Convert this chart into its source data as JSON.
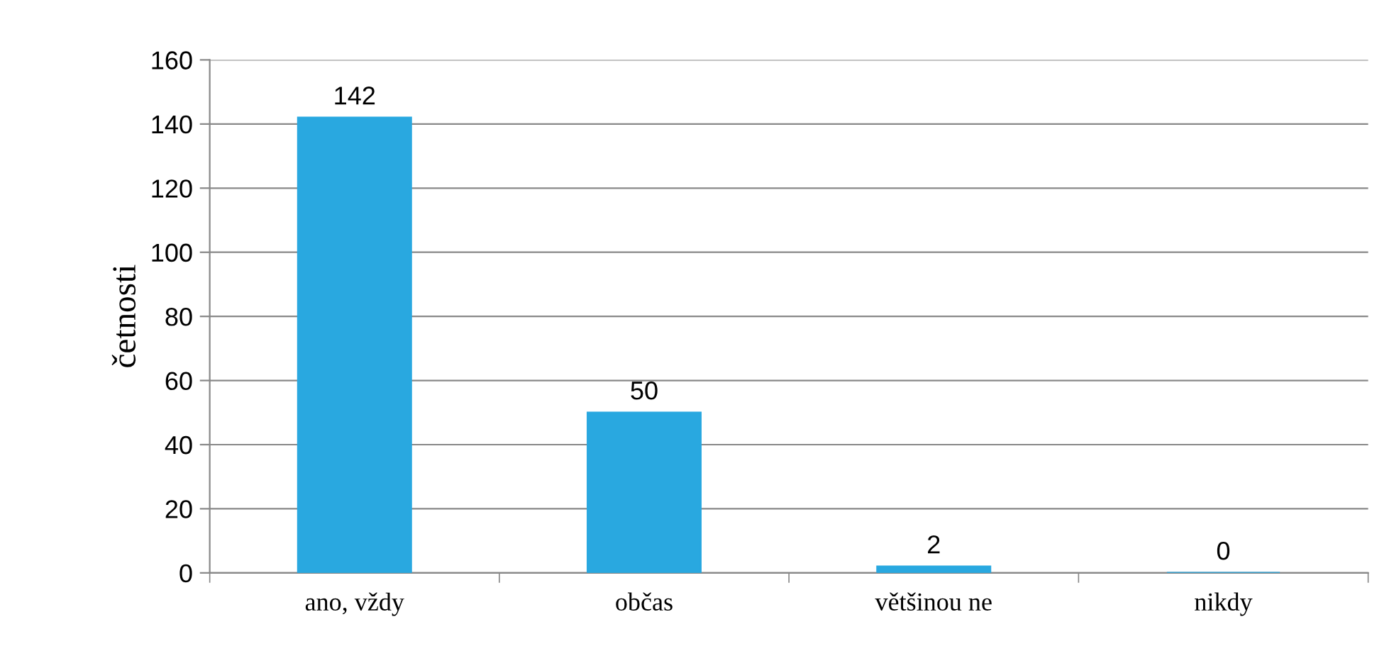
{
  "chart_data": {
    "type": "bar",
    "ylabel": "četnosti",
    "categories": [
      "ano, vždy",
      "občas",
      "většinou ne",
      "nikdy"
    ],
    "values": [
      142,
      50,
      2,
      0
    ],
    "color": "#29a8e0",
    "ylim": [
      0,
      160
    ],
    "yticks": [
      0,
      20,
      40,
      60,
      80,
      100,
      120,
      140,
      160
    ],
    "grid": "y",
    "data_labels": true,
    "legend": false
  }
}
